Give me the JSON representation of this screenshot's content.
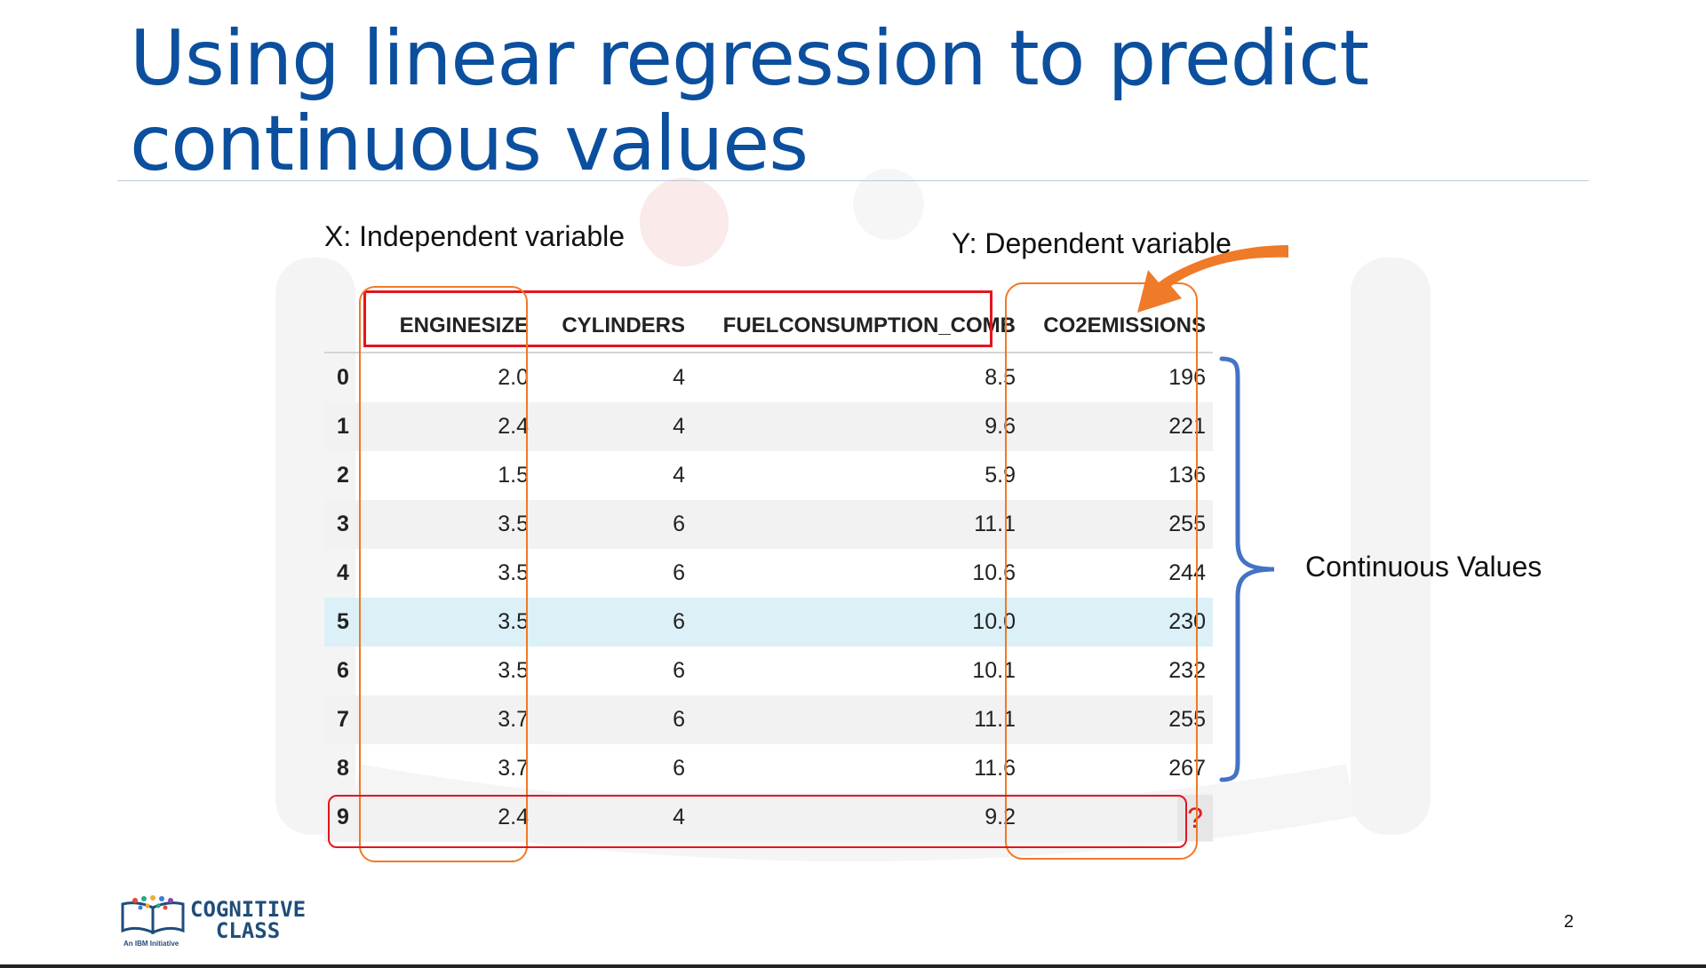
{
  "slide": {
    "title_line1": "Using linear regression to predict",
    "title_line2": "continuous values",
    "page_number": "2"
  },
  "annotations": {
    "x_label": "X: Independent variable",
    "y_label": "Y: Dependent variable",
    "continuous_label": "Continuous Values"
  },
  "table": {
    "columns": [
      "ENGINESIZE",
      "CYLINDERS",
      "FUELCONSUMPTION_COMB",
      "CO2EMISSIONS"
    ],
    "rows": [
      {
        "index": "0",
        "enginesize": "2.0",
        "cylinders": "4",
        "fuel": "8.5",
        "co2": "196"
      },
      {
        "index": "1",
        "enginesize": "2.4",
        "cylinders": "4",
        "fuel": "9.6",
        "co2": "221"
      },
      {
        "index": "2",
        "enginesize": "1.5",
        "cylinders": "4",
        "fuel": "5.9",
        "co2": "136"
      },
      {
        "index": "3",
        "enginesize": "3.5",
        "cylinders": "6",
        "fuel": "11.1",
        "co2": "255"
      },
      {
        "index": "4",
        "enginesize": "3.5",
        "cylinders": "6",
        "fuel": "10.6",
        "co2": "244"
      },
      {
        "index": "5",
        "enginesize": "3.5",
        "cylinders": "6",
        "fuel": "10.0",
        "co2": "230"
      },
      {
        "index": "6",
        "enginesize": "3.5",
        "cylinders": "6",
        "fuel": "10.1",
        "co2": "232"
      },
      {
        "index": "7",
        "enginesize": "3.7",
        "cylinders": "6",
        "fuel": "11.1",
        "co2": "255"
      },
      {
        "index": "8",
        "enginesize": "3.7",
        "cylinders": "6",
        "fuel": "11.6",
        "co2": "267"
      },
      {
        "index": "9",
        "enginesize": "2.4",
        "cylinders": "4",
        "fuel": "9.2",
        "co2": "?"
      }
    ]
  },
  "logo": {
    "line1": "COGNITIVE",
    "line2": "CLASS",
    "tagline": "An IBM Initiative"
  },
  "colors": {
    "title": "#0b4f9e",
    "header_box": "#e3151f",
    "column_box": "#ef7a27",
    "brace": "#4472c4",
    "arrow": "#ef7a27",
    "question_mark": "#e01f1f",
    "highlight_row": "#dcf0f7"
  },
  "icons": [
    "curved-arrow-icon",
    "curly-brace-icon",
    "cognitive-class-logo-icon"
  ]
}
